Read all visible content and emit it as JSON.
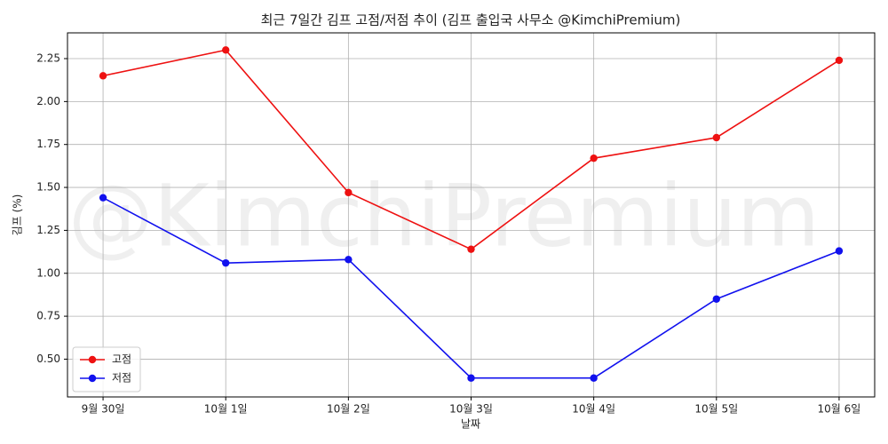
{
  "chart_data": {
    "type": "line",
    "title": "최근 7일간 김프 고점/저점 추이 (김프 출입국 사무소 @KimchiPremium)",
    "watermark": "@KimchiPremium",
    "x_label": "날짜",
    "y_label": "김프 (%)",
    "categories": [
      "9월 30일",
      "10월 1일",
      "10월 2일",
      "10월 3일",
      "10월 4일",
      "10월 5일",
      "10월 6일"
    ],
    "series": [
      {
        "name": "고점",
        "color": "#ee1111",
        "values": [
          2.15,
          2.3,
          1.47,
          1.14,
          1.67,
          1.79,
          2.24
        ]
      },
      {
        "name": "저점",
        "color": "#1111ee",
        "values": [
          1.44,
          1.06,
          1.08,
          0.39,
          0.39,
          0.85,
          1.13
        ]
      }
    ],
    "ylim": [
      0.28,
      2.4
    ],
    "yticks": [
      {
        "value": 0.5,
        "label": "0.50"
      },
      0.75,
      {
        "value": 1,
        "label": "1.00"
      },
      1.25,
      {
        "value": 1.5,
        "label": "1.50"
      },
      1.75,
      {
        "value": 2,
        "label": "2.00"
      },
      2.25
    ],
    "grid": true,
    "legend": "lower left"
  }
}
